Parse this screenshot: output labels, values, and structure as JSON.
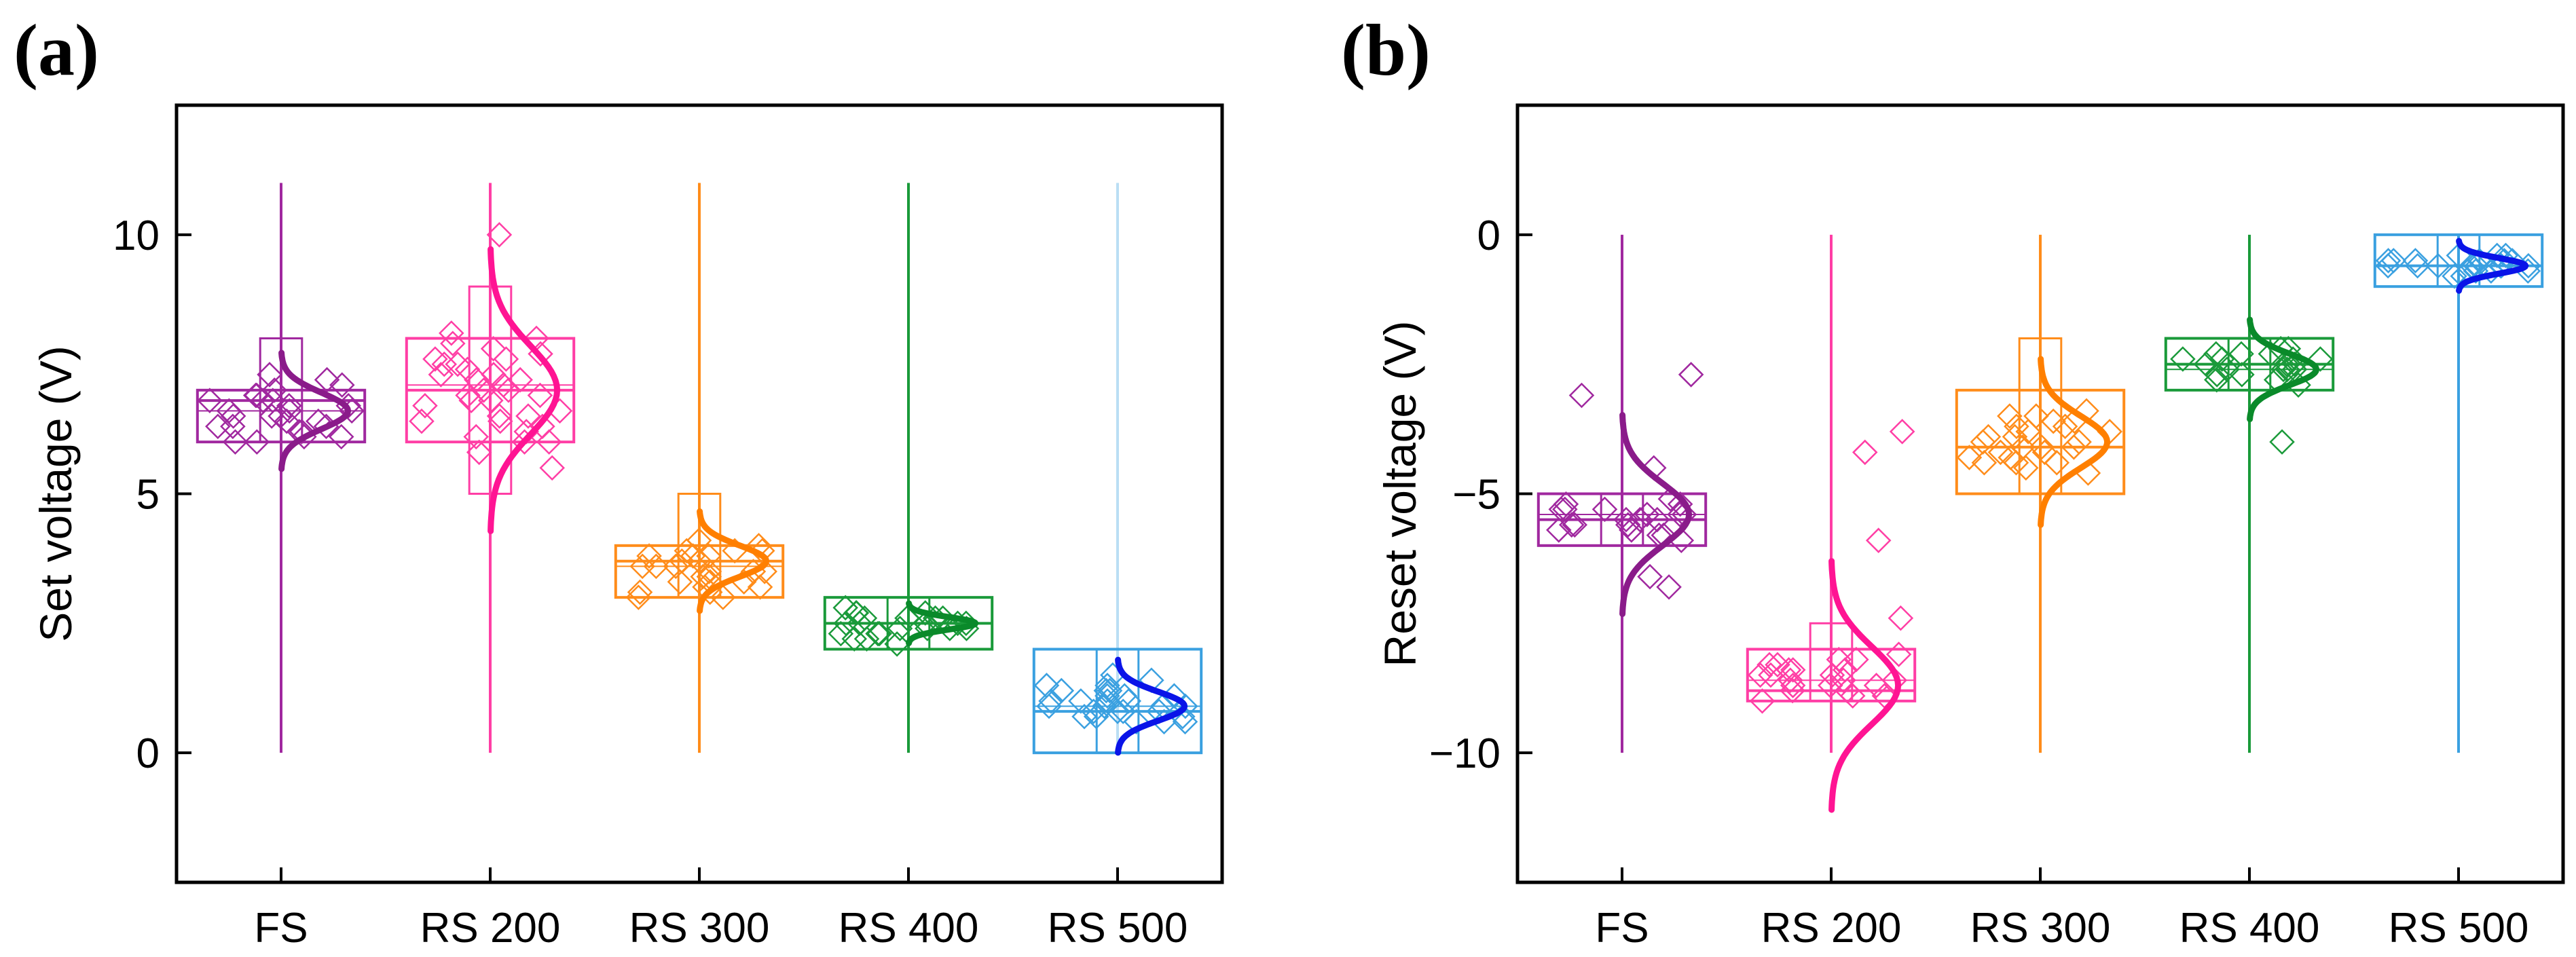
{
  "chart_data": [
    {
      "type": "box",
      "panel_label": "(a)",
      "ylabel": "Set voltage (V)",
      "ylim": [
        -2.5,
        12.5
      ],
      "yticks": [
        0,
        5,
        10
      ],
      "ytick_labels": [
        "0",
        "5",
        "10"
      ],
      "categories": [
        "FS",
        "RS 200",
        "RS 300",
        "RS 400",
        "RS 500"
      ],
      "series": [
        {
          "name": "FS",
          "color": "#a0289f",
          "curve_color": "#8a1b8a",
          "min": 0,
          "max": 11,
          "q1": 6.0,
          "q3": 7.0,
          "median": 6.8,
          "mean": 6.6,
          "whisker_low": 6.0,
          "whisker_high": 8.0,
          "points": [
            6.1,
            6.3,
            6.6,
            6.8,
            7.0,
            6.2,
            6.5,
            6.9,
            6.4,
            6.7,
            7.2,
            6.0,
            6.6,
            6.3,
            6.8,
            7.1,
            6.5,
            6.2,
            6.9,
            6.4,
            6.7,
            6.1,
            7.3,
            6.6,
            6.0,
            6.5,
            6.8,
            6.3
          ],
          "fit_mean": 6.6,
          "fit_sd": 0.35
        },
        {
          "name": "RS 200",
          "color": "#ff3ea5",
          "curve_color": "#ff1493",
          "min": 0,
          "max": 11,
          "q1": 6.0,
          "q3": 8.0,
          "median": 7.0,
          "mean": 7.1,
          "whisker_low": 5.0,
          "whisker_high": 9.0,
          "points": [
            6.0,
            6.5,
            7.0,
            7.5,
            8.0,
            6.2,
            6.8,
            7.3,
            7.8,
            6.4,
            7.1,
            7.6,
            6.1,
            6.9,
            7.4,
            5.8,
            7.9,
            6.6,
            7.2,
            6.3,
            7.7,
            6.7,
            7.0,
            5.5,
            8.1,
            6.5,
            7.3,
            6.0,
            7.5,
            6.9,
            10.0,
            6.8,
            7.2,
            6.4,
            7.6
          ],
          "fit_mean": 7.0,
          "fit_sd": 0.85
        },
        {
          "name": "RS 300",
          "color": "#ff8c1a",
          "curve_color": "#ff7f00",
          "min": 0,
          "max": 11,
          "q1": 3.0,
          "q3": 4.0,
          "median": 3.7,
          "mean": 3.6,
          "whisker_low": 3.0,
          "whisker_high": 5.0,
          "points": [
            3.0,
            3.3,
            3.6,
            3.9,
            3.2,
            3.5,
            3.8,
            3.1,
            3.4,
            3.7,
            4.0,
            3.3,
            3.6,
            3.9,
            3.0,
            3.5,
            3.8,
            3.2,
            3.7,
            3.4,
            4.1,
            3.6,
            3.1,
            3.9,
            3.5,
            3.3,
            3.8
          ],
          "fit_mean": 3.7,
          "fit_sd": 0.3
        },
        {
          "name": "RS 400",
          "color": "#1a9a3a",
          "curve_color": "#0a8a2a",
          "min": 0,
          "max": 11,
          "q1": 2.0,
          "q3": 3.0,
          "median": 2.5,
          "mean": 2.5,
          "whisker_low": 2.0,
          "whisker_high": 3.0,
          "points": [
            2.1,
            2.3,
            2.5,
            2.7,
            2.4,
            2.6,
            2.2,
            2.5,
            2.8,
            2.3,
            2.6,
            2.4,
            2.7,
            2.5,
            2.2,
            2.6,
            2.4,
            2.5,
            2.3,
            2.7,
            2.5,
            2.4,
            2.6
          ],
          "fit_mean": 2.5,
          "fit_sd": 0.12
        },
        {
          "name": "RS 500",
          "color": "#3aa0e0",
          "curve_color": "#0a14e8",
          "min": 0,
          "max": 11,
          "q1": 0.0,
          "q3": 2.0,
          "median": 0.8,
          "mean": 0.9,
          "whisker_low": 0.0,
          "whisker_high": 2.0,
          "points": [
            0.6,
            0.8,
            1.0,
            1.2,
            0.7,
            0.9,
            1.1,
            1.3,
            0.8,
            1.0,
            1.4,
            0.6,
            0.9,
            1.2,
            0.7,
            1.0,
            1.5,
            0.8,
            1.1,
            0.9,
            1.3,
            0.7,
            1.0,
            0.8,
            1.2,
            0.6,
            0.9,
            1.1
          ],
          "fit_mean": 0.9,
          "fit_sd": 0.28
        }
      ]
    },
    {
      "type": "box",
      "panel_label": "(b)",
      "ylabel": "Reset voltage (V)",
      "ylim": [
        -12.5,
        2.5
      ],
      "yticks": [
        -10,
        -5,
        0
      ],
      "ytick_labels": [
        "−10",
        "−5",
        "0"
      ],
      "categories": [
        "FS",
        "RS 200",
        "RS 300",
        "RS 400",
        "RS 500"
      ],
      "series": [
        {
          "name": "FS",
          "color": "#a0289f",
          "curve_color": "#8a1b8a",
          "min": -10,
          "max": 0,
          "q1": -6.0,
          "q3": -5.0,
          "median": -5.5,
          "mean": -5.4,
          "whisker_low": -6.0,
          "whisker_high": -5.0,
          "points": [
            -5.2,
            -5.4,
            -5.6,
            -5.8,
            -5.3,
            -5.5,
            -5.7,
            -5.1,
            -5.4,
            -5.6,
            -5.9,
            -5.3,
            -5.5,
            -5.2,
            -5.7,
            -6.6,
            -6.8,
            -4.5,
            -2.7,
            -3.1,
            -5.4,
            -5.6,
            -5.3,
            -5.5,
            -5.8
          ],
          "fit_mean": -5.4,
          "fit_sd": 0.6
        },
        {
          "name": "RS 200",
          "color": "#ff3ea5",
          "curve_color": "#ff1493",
          "min": -10,
          "max": 0,
          "q1": -9.0,
          "q3": -8.0,
          "median": -8.8,
          "mean": -8.6,
          "whisker_low": -9.0,
          "whisker_high": -7.5,
          "points": [
            -8.1,
            -8.4,
            -8.7,
            -9.0,
            -8.3,
            -8.6,
            -8.9,
            -8.2,
            -8.5,
            -8.8,
            -8.4,
            -8.7,
            -8.3,
            -8.6,
            -8.9,
            -8.5,
            -3.8,
            -4.2,
            -5.9,
            -7.4,
            -8.8,
            -8.4,
            -8.6,
            -8.2,
            -8.7,
            -8.5
          ],
          "fit_mean": -8.7,
          "fit_sd": 0.75
        },
        {
          "name": "RS 300",
          "color": "#ff8c1a",
          "curve_color": "#ff7f00",
          "min": -10,
          "max": 0,
          "q1": -5.0,
          "q3": -3.0,
          "median": -4.1,
          "mean": -4.1,
          "whisker_low": -5.0,
          "whisker_high": -2.0,
          "points": [
            -3.5,
            -3.8,
            -4.1,
            -4.4,
            -3.6,
            -3.9,
            -4.2,
            -4.5,
            -3.7,
            -4.0,
            -4.3,
            -3.4,
            -4.6,
            -3.8,
            -4.1,
            -4.4,
            -3.9,
            -4.2,
            -3.6,
            -4.0,
            -4.3,
            -3.7,
            -4.1,
            -3.5,
            -4.4
          ],
          "fit_mean": -4.0,
          "fit_sd": 0.5
        },
        {
          "name": "RS 400",
          "color": "#1a9a3a",
          "curve_color": "#0a8a2a",
          "min": -10,
          "max": 0,
          "q1": -3.0,
          "q3": -2.0,
          "median": -2.5,
          "mean": -2.6,
          "whisker_low": -3.0,
          "whisker_high": -2.0,
          "points": [
            -2.2,
            -2.4,
            -2.6,
            -2.8,
            -2.3,
            -2.5,
            -2.7,
            -2.2,
            -2.4,
            -2.6,
            -2.9,
            -2.3,
            -2.5,
            -2.7,
            -2.4,
            -2.6,
            -4.0,
            -2.5,
            -2.3,
            -2.6,
            -2.8,
            -2.4
          ],
          "fit_mean": -2.6,
          "fit_sd": 0.3
        },
        {
          "name": "RS 500",
          "color": "#3aa0e0",
          "curve_color": "#0a14e8",
          "min": -10,
          "max": 0,
          "q1": -1.0,
          "q3": 0.0,
          "median": -0.6,
          "mean": -0.6,
          "whisker_low": -1.0,
          "whisker_high": 0.0,
          "points": [
            -0.5,
            -0.6,
            -0.7,
            -0.4,
            -0.6,
            -0.8,
            -0.5,
            -0.7,
            -0.6,
            -0.4,
            -0.6,
            -0.5,
            -0.7,
            -0.6,
            -0.5,
            -0.8,
            -0.6,
            -0.4,
            -0.7,
            -0.5,
            -0.6,
            -0.6,
            -0.5
          ],
          "fit_mean": -0.6,
          "fit_sd": 0.15
        }
      ]
    }
  ]
}
